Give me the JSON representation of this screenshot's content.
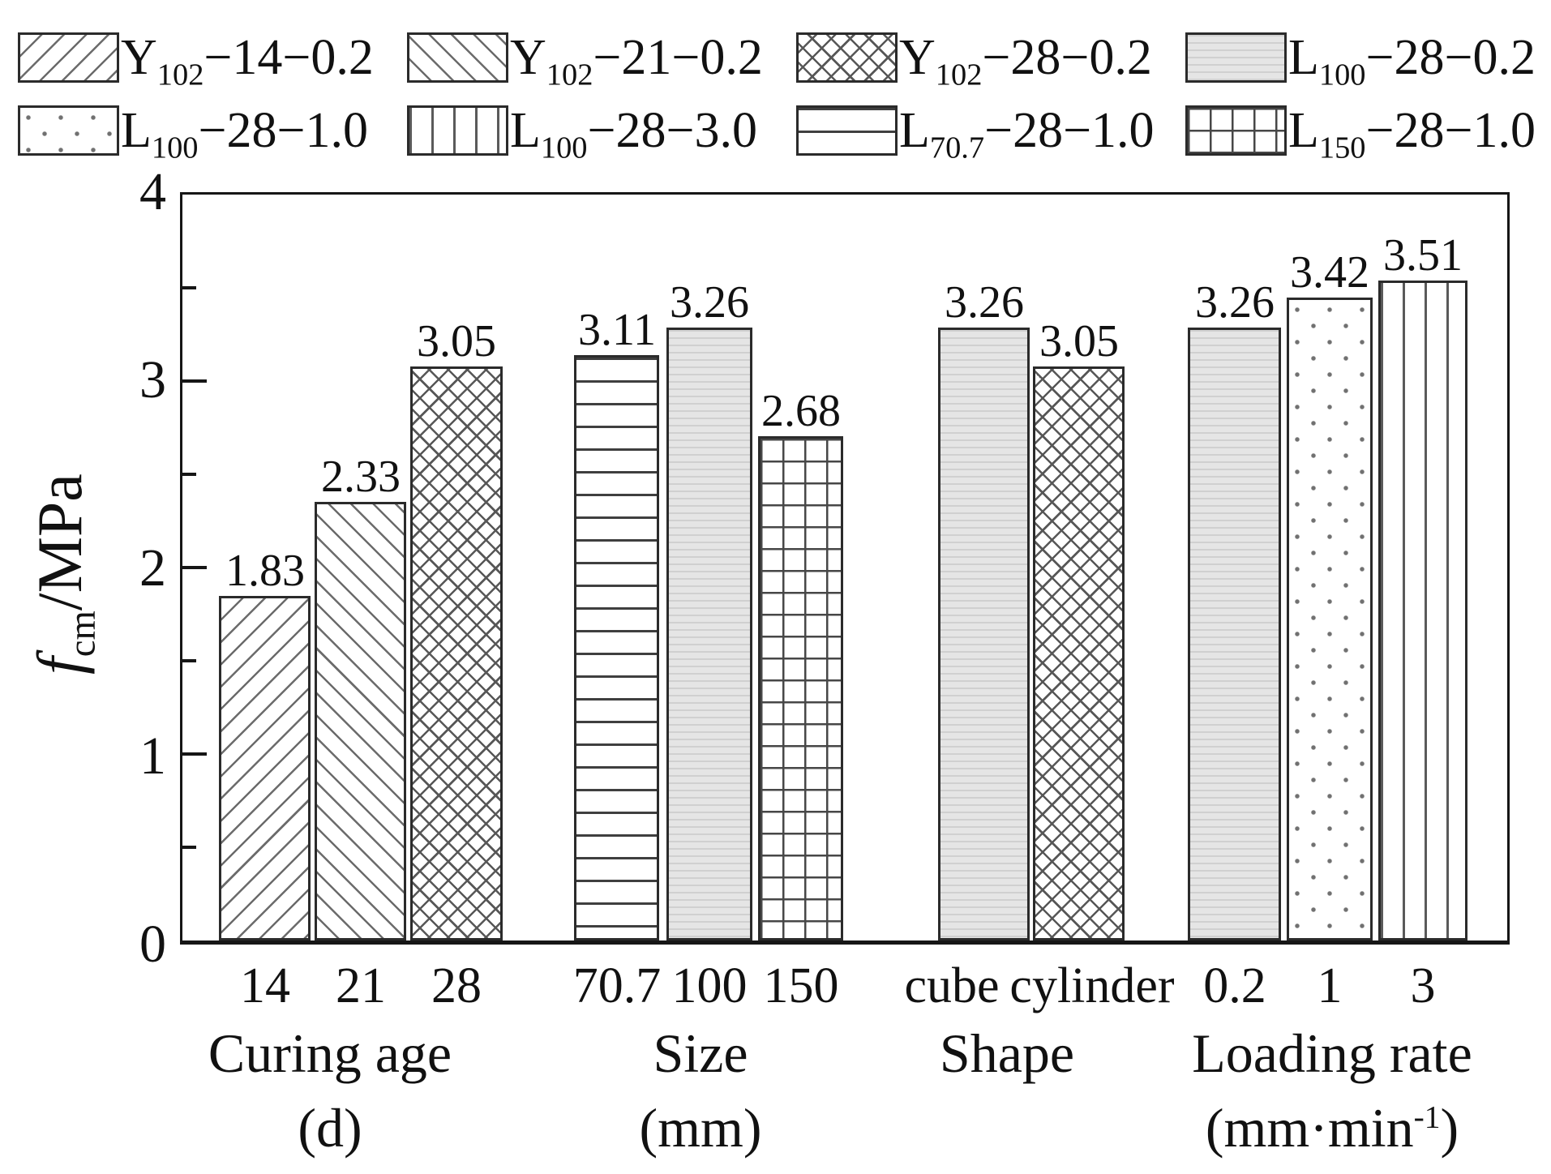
{
  "figure": {
    "legend": [
      {
        "id": "Y102-14-0.2",
        "prefix": "Y",
        "sub": "102",
        "rest": "−14−0.2",
        "pattern": "diag-up"
      },
      {
        "id": "Y102-21-0.2",
        "prefix": "Y",
        "sub": "102",
        "rest": "−21−0.2",
        "pattern": "diag-down"
      },
      {
        "id": "Y102-28-0.2",
        "prefix": "Y",
        "sub": "102",
        "rest": "−28−0.2",
        "pattern": "crosshatch"
      },
      {
        "id": "L100-28-0.2",
        "prefix": "L",
        "sub": "100",
        "rest": "−28−0.2",
        "pattern": "gray"
      },
      {
        "id": "L100-28-1.0",
        "prefix": "L",
        "sub": "100",
        "rest": "−28−1.0",
        "pattern": "dots"
      },
      {
        "id": "L100-28-3.0",
        "prefix": "L",
        "sub": "100",
        "rest": "−28−3.0",
        "pattern": "vlines"
      },
      {
        "id": "L70.7-28-1.0",
        "prefix": "L",
        "sub": "70.7",
        "rest": "−28−1.0",
        "pattern": "hlines"
      },
      {
        "id": "L150-28-1.0",
        "prefix": "L",
        "sub": "150",
        "rest": "−28−1.0",
        "pattern": "grid"
      }
    ],
    "colors": {
      "ink": "#111111",
      "bar_outline": "#2b2b2b",
      "gray_fill": "#e5e5e5"
    }
  },
  "chart_data": {
    "type": "bar",
    "title": "",
    "ylabel": {
      "var": "f",
      "var_sub": "cm",
      "rest": "/MPa"
    },
    "ylim": [
      0,
      4
    ],
    "yticks": [
      0,
      1,
      2,
      3,
      4
    ],
    "minor_yticks": [
      0.5,
      1.5,
      2.5,
      3.5
    ],
    "grid": false,
    "legend_position": "top",
    "groups": [
      {
        "label": "Curing age",
        "unit_pre": "(d)",
        "unit_sup": "",
        "unit_post": "",
        "bars": [
          {
            "x": "14",
            "value": 1.83,
            "series": "Y102-14-0.2",
            "pattern": "diag-up"
          },
          {
            "x": "21",
            "value": 2.33,
            "series": "Y102-21-0.2",
            "pattern": "diag-down"
          },
          {
            "x": "28",
            "value": 3.05,
            "series": "Y102-28-0.2",
            "pattern": "crosshatch"
          }
        ]
      },
      {
        "label": "Size",
        "unit_pre": "(mm)",
        "unit_sup": "",
        "unit_post": "",
        "bars": [
          {
            "x": "70.7",
            "value": 3.11,
            "series": "L70.7-28-1.0",
            "pattern": "hlines"
          },
          {
            "x": "100",
            "value": 3.26,
            "series": "L100-28-0.2",
            "pattern": "gray"
          },
          {
            "x": "150",
            "value": 2.68,
            "series": "L150-28-1.0",
            "pattern": "grid"
          }
        ]
      },
      {
        "label": "Shape",
        "unit_pre": "",
        "unit_sup": "",
        "unit_post": "",
        "bars": [
          {
            "x": "cube",
            "value": 3.26,
            "series": "L100-28-0.2",
            "pattern": "gray"
          },
          {
            "x": "cylinder",
            "value": 3.05,
            "series": "Y102-28-0.2",
            "pattern": "crosshatch"
          }
        ]
      },
      {
        "label": "Loading rate",
        "unit_pre": "(mm·min",
        "unit_sup": "-1",
        "unit_post": ")",
        "bars": [
          {
            "x": "0.2",
            "value": 3.26,
            "series": "L100-28-0.2",
            "pattern": "gray"
          },
          {
            "x": "1",
            "value": 3.42,
            "series": "L100-28-1.0",
            "pattern": "dots"
          },
          {
            "x": "3",
            "value": 3.51,
            "series": "L100-28-3.0",
            "pattern": "vlines"
          }
        ]
      }
    ]
  }
}
